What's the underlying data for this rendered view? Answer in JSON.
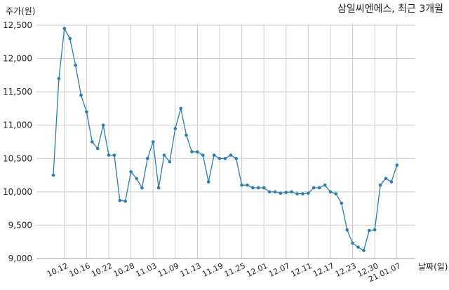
{
  "chart_data": {
    "type": "line",
    "title": "삼일씨엔에스, 최근 3개월",
    "ylabel": "주가(원)",
    "xlabel": "날짜(일)",
    "ylim": [
      9000,
      12500
    ],
    "grid": true,
    "legend": "none",
    "line_color": "#2a7db0",
    "grid_color": "#cccccc",
    "yticks": [
      {
        "value": 9000,
        "label": "9,000"
      },
      {
        "value": 9500,
        "label": "9,500"
      },
      {
        "value": 10000,
        "label": "10,000"
      },
      {
        "value": 10500,
        "label": "10,500"
      },
      {
        "value": 11000,
        "label": "11,000"
      },
      {
        "value": 11500,
        "label": "11,500"
      },
      {
        "value": 12000,
        "label": "12,000"
      },
      {
        "value": 12500,
        "label": "12,500"
      }
    ],
    "xticks": [
      {
        "index": 2,
        "label": "10.12"
      },
      {
        "index": 6,
        "label": "10.16"
      },
      {
        "index": 10,
        "label": "10.22"
      },
      {
        "index": 14,
        "label": "10.28"
      },
      {
        "index": 18,
        "label": "11.03"
      },
      {
        "index": 22,
        "label": "11.09"
      },
      {
        "index": 26,
        "label": "11.13"
      },
      {
        "index": 30,
        "label": "11.19"
      },
      {
        "index": 34,
        "label": "11.25"
      },
      {
        "index": 38,
        "label": "12.01"
      },
      {
        "index": 42,
        "label": "12.07"
      },
      {
        "index": 46,
        "label": "12.11"
      },
      {
        "index": 50,
        "label": "12.17"
      },
      {
        "index": 54,
        "label": "12.23"
      },
      {
        "index": 58,
        "label": "12.30"
      },
      {
        "index": 62,
        "label": "21.01.07"
      }
    ],
    "values": [
      10250,
      11700,
      12450,
      12300,
      11900,
      11450,
      11200,
      10750,
      10650,
      11000,
      10550,
      10550,
      9870,
      9860,
      10300,
      10200,
      10060,
      10500,
      10750,
      10060,
      10550,
      10450,
      10950,
      11250,
      10850,
      10600,
      10600,
      10550,
      10150,
      10550,
      10500,
      10500,
      10550,
      10500,
      10100,
      10100,
      10060,
      10060,
      10060,
      10000,
      10000,
      9980,
      9990,
      10000,
      9970,
      9970,
      9980,
      10060,
      10060,
      10100,
      10000,
      9970,
      9830,
      9430,
      9230,
      9170,
      9120,
      9420,
      9430,
      10100,
      10200,
      10150,
      10400
    ]
  }
}
